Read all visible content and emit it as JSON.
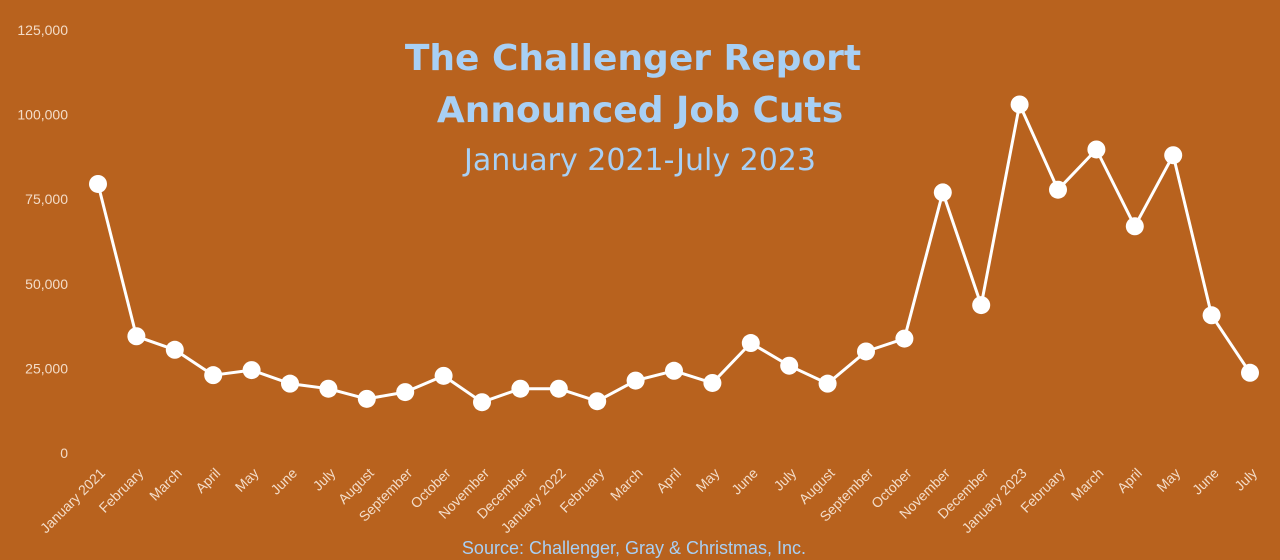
{
  "colors": {
    "background": "#b8621e",
    "series": "#ffffff",
    "title": "#a8d0f5",
    "tick_labels": "#f3dcc8",
    "source": "#a8d0f5"
  },
  "chart_data": {
    "type": "line",
    "title": [
      "The Challenger Report",
      "Announced Job Cuts",
      "January 2021-July 2023"
    ],
    "source": "Source: Challenger, Gray & Christmas, Inc.",
    "xlabel": "",
    "ylabel": "",
    "ylim": [
      0,
      125000
    ],
    "yticks": [
      0,
      25000,
      50000,
      75000,
      100000,
      125000
    ],
    "ytick_labels": [
      "0",
      "25,000",
      "50,000",
      "75,000",
      "100,000",
      "125,000"
    ],
    "grid": false,
    "legend": "none",
    "categories": [
      "January 2021",
      "February",
      "March",
      "April",
      "May",
      "June",
      "July",
      "August",
      "September",
      "October",
      "November",
      "December",
      "January 2022",
      "February",
      "March",
      "April",
      "May",
      "June",
      "July",
      "August",
      "September",
      "October",
      "November",
      "December",
      "January 2023",
      "February",
      "March",
      "April",
      "May",
      "June",
      "July"
    ],
    "series": [
      {
        "values": [
          79500,
          34500,
          30500,
          23000,
          24500,
          20500,
          19000,
          16000,
          18000,
          22800,
          15000,
          19000,
          19000,
          15300,
          21400,
          24300,
          20700,
          32500,
          25800,
          20500,
          30000,
          33800,
          77000,
          43700,
          103000,
          77800,
          89700,
          67000,
          88000,
          40700,
          23700
        ]
      }
    ]
  }
}
